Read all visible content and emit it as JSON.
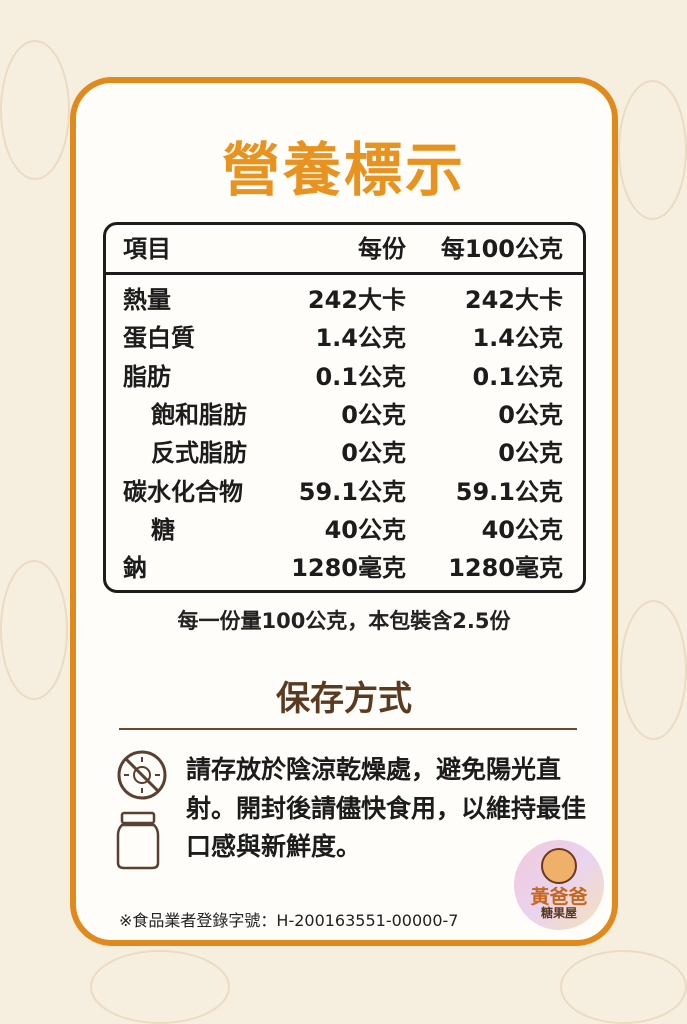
{
  "title": "營養標示",
  "table": {
    "headers": [
      "項目",
      "每份",
      "每100公克"
    ],
    "rows": [
      {
        "item": "熱量",
        "per_serving": "242大卡",
        "per_100g": "242大卡"
      },
      {
        "item": "蛋白質",
        "per_serving": "1.4公克",
        "per_100g": "1.4公克"
      },
      {
        "item": "脂肪",
        "per_serving": "0.1公克",
        "per_100g": "0.1公克"
      },
      {
        "item": "飽和脂肪",
        "per_serving": "0公克",
        "per_100g": "0公克"
      },
      {
        "item": "反式脂肪",
        "per_serving": "0公克",
        "per_100g": "0公克"
      },
      {
        "item": "碳水化合物",
        "per_serving": "59.1公克",
        "per_100g": "59.1公克"
      },
      {
        "item": "糖",
        "per_serving": "40公克",
        "per_100g": "40公克"
      },
      {
        "item": "鈉",
        "per_serving": "1280毫克",
        "per_100g": "1280毫克"
      }
    ]
  },
  "serving_note": "每一份量100公克，本包裝含2.5份",
  "storage": {
    "heading": "保存方式",
    "text": "請存放於陰涼乾燥處，避免陽光直射。開封後請儘快食用，以維持最佳口感與新鮮度。",
    "icons": [
      "no-sunlight-icon",
      "jar-icon"
    ]
  },
  "registration": "※食品業者登錄字號：H-200163551-00000-7",
  "logo": {
    "name": "黃爸爸",
    "sub": "糖果屋"
  },
  "colors": {
    "accent": "#e08a1e",
    "title": "#e8921f",
    "heading": "#5a3a20",
    "background": "#f6eedf"
  }
}
